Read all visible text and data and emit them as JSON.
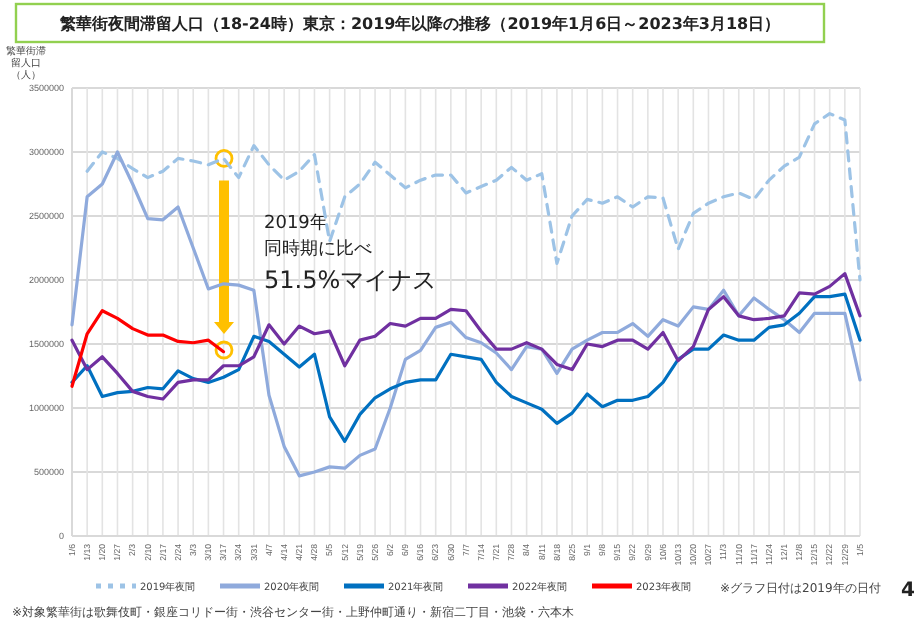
{
  "chart_data": {
    "type": "line",
    "title": "繁華街夜間滞留人口（18-24時）東京：2019年以降の推移（2019年1月6日～2023年3月18日）",
    "ylabel": "繁華街滞留人口（人）",
    "categories": [
      "1/6",
      "1/13",
      "1/20",
      "1/27",
      "2/3",
      "2/10",
      "2/17",
      "2/24",
      "3/3",
      "3/10",
      "3/17",
      "3/24",
      "3/31",
      "4/7",
      "4/14",
      "4/21",
      "4/28",
      "5/5",
      "5/12",
      "5/19",
      "5/26",
      "6/2",
      "6/9",
      "6/16",
      "6/23",
      "6/30",
      "7/7",
      "7/14",
      "7/21",
      "7/28",
      "8/4",
      "8/11",
      "8/18",
      "8/25",
      "9/1",
      "9/8",
      "9/15",
      "9/22",
      "9/29",
      "10/6",
      "10/13",
      "10/20",
      "10/27",
      "11/3",
      "11/10",
      "11/17",
      "11/24",
      "12/1",
      "12/8",
      "12/15",
      "12/22",
      "12/29",
      "1/5"
    ],
    "ylim": [
      0,
      3500000
    ],
    "yticks": [
      0,
      500000,
      1000000,
      1500000,
      2000000,
      2500000,
      3000000,
      3500000
    ],
    "grid": true,
    "legend": "bottom",
    "series": [
      {
        "name": "2019年夜間",
        "color": "#9dc3e6",
        "line_style": "dashed",
        "values": [
          null,
          2850000,
          3000000,
          2950000,
          2870000,
          2800000,
          2850000,
          2950000,
          2930000,
          2900000,
          2950000,
          2800000,
          3050000,
          2900000,
          2780000,
          2850000,
          2980000,
          2300000,
          2650000,
          2750000,
          2920000,
          2820000,
          2720000,
          2780000,
          2820000,
          2820000,
          2680000,
          2730000,
          2780000,
          2880000,
          2780000,
          2830000,
          2130000,
          2500000,
          2630000,
          2600000,
          2650000,
          2570000,
          2650000,
          2640000,
          2240000,
          2520000,
          2600000,
          2650000,
          2680000,
          2630000,
          2780000,
          2890000,
          2960000,
          3220000,
          3300000,
          3250000,
          2000000
        ]
      },
      {
        "name": "2020年夜間",
        "color": "#8faadc",
        "values": [
          1650000,
          2650000,
          2750000,
          3000000,
          2750000,
          2480000,
          2470000,
          2570000,
          2250000,
          1930000,
          1970000,
          1960000,
          1920000,
          1100000,
          700000,
          470000,
          500000,
          540000,
          530000,
          630000,
          680000,
          1000000,
          1380000,
          1450000,
          1630000,
          1670000,
          1550000,
          1510000,
          1430000,
          1300000,
          1480000,
          1460000,
          1270000,
          1460000,
          1530000,
          1590000,
          1590000,
          1660000,
          1560000,
          1690000,
          1640000,
          1790000,
          1770000,
          1920000,
          1720000,
          1860000,
          1770000,
          1690000,
          1590000,
          1740000,
          1740000,
          1740000,
          1220000
        ]
      },
      {
        "name": "2021年夜間",
        "color": "#0070c0",
        "values": [
          1200000,
          1330000,
          1090000,
          1120000,
          1130000,
          1160000,
          1150000,
          1290000,
          1230000,
          1200000,
          1240000,
          1300000,
          1560000,
          1520000,
          1420000,
          1320000,
          1420000,
          930000,
          740000,
          950000,
          1080000,
          1150000,
          1200000,
          1220000,
          1220000,
          1420000,
          1400000,
          1380000,
          1200000,
          1090000,
          1040000,
          990000,
          880000,
          960000,
          1110000,
          1010000,
          1060000,
          1060000,
          1090000,
          1200000,
          1380000,
          1460000,
          1460000,
          1570000,
          1530000,
          1530000,
          1630000,
          1650000,
          1740000,
          1870000,
          1870000,
          1890000,
          1530000
        ]
      },
      {
        "name": "2022年夜間",
        "color": "#7030a0",
        "values": [
          1530000,
          1300000,
          1400000,
          1270000,
          1130000,
          1090000,
          1070000,
          1200000,
          1220000,
          1220000,
          1330000,
          1330000,
          1400000,
          1650000,
          1500000,
          1640000,
          1580000,
          1600000,
          1330000,
          1530000,
          1560000,
          1660000,
          1640000,
          1700000,
          1700000,
          1770000,
          1760000,
          1600000,
          1460000,
          1460000,
          1510000,
          1460000,
          1340000,
          1300000,
          1500000,
          1480000,
          1530000,
          1530000,
          1460000,
          1590000,
          1370000,
          1480000,
          1770000,
          1870000,
          1720000,
          1690000,
          1700000,
          1720000,
          1900000,
          1890000,
          1950000,
          2050000,
          1720000
        ]
      },
      {
        "name": "2023年夜間",
        "color": "#ff0000",
        "values": [
          1170000,
          1580000,
          1760000,
          1700000,
          1620000,
          1570000,
          1570000,
          1520000,
          1510000,
          1530000,
          1440000,
          null,
          null,
          null,
          null,
          null,
          null,
          null,
          null,
          null,
          null,
          null,
          null,
          null,
          null,
          null,
          null,
          null,
          null,
          null,
          null,
          null,
          null,
          null,
          null,
          null,
          null,
          null,
          null,
          null,
          null,
          null,
          null,
          null,
          null,
          null,
          null,
          null,
          null,
          null,
          null,
          null,
          null
        ]
      }
    ],
    "annotations": [
      "2019年",
      "同時期に比べ",
      "51.5%マイナス",
      "※対象繁華街は歌舞伎町・銀座コリドー街・渋谷センター街・上野仲町通り・新宿二丁目・池袋・六本木",
      "※グラフ日付は2019年の日付",
      "4"
    ]
  }
}
